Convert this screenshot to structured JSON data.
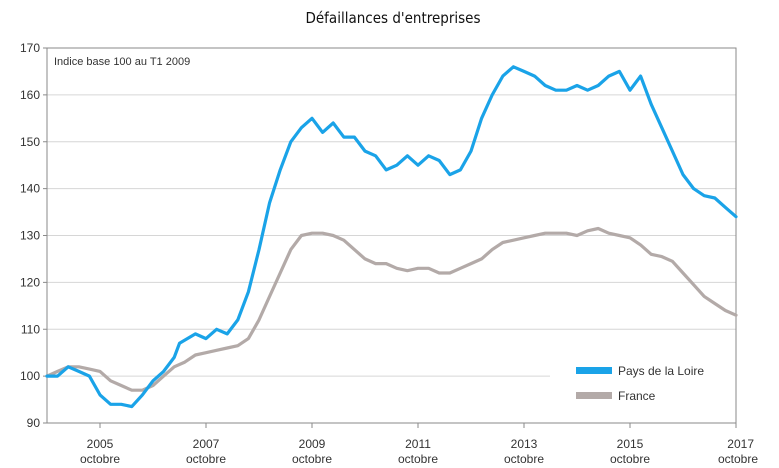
{
  "chart_data": {
    "type": "line",
    "title": "Défaillances d'entreprises",
    "annotation": "Indice base 100 au T1 2009",
    "xlabel": "",
    "ylabel": "",
    "ylim": [
      90,
      170
    ],
    "yticks": [
      90,
      100,
      110,
      120,
      130,
      140,
      150,
      160,
      170
    ],
    "xlim": [
      2004.8,
      2017.8
    ],
    "xticks": [
      {
        "value": 2005.8,
        "label1": "2005",
        "label2": "octobre"
      },
      {
        "value": 2007.8,
        "label1": "2007",
        "label2": "octobre"
      },
      {
        "value": 2009.8,
        "label1": "2009",
        "label2": "octobre"
      },
      {
        "value": 2011.8,
        "label1": "2011",
        "label2": "octobre"
      },
      {
        "value": 2013.8,
        "label1": "2013",
        "label2": "octobre"
      },
      {
        "value": 2015.8,
        "label1": "2015",
        "label2": "octobre"
      },
      {
        "value": 2017.8,
        "label1": "2017",
        "label2": "octobre"
      }
    ],
    "grid": "horizontal",
    "legend_position": "bottom-right",
    "series": [
      {
        "name": "Pays de la Loire",
        "color": "#1aa3e8",
        "points": [
          [
            2004.8,
            100
          ],
          [
            2005.0,
            100
          ],
          [
            2005.2,
            102
          ],
          [
            2005.4,
            101
          ],
          [
            2005.6,
            100
          ],
          [
            2005.8,
            96
          ],
          [
            2006.0,
            94
          ],
          [
            2006.2,
            94
          ],
          [
            2006.4,
            93.5
          ],
          [
            2006.6,
            96
          ],
          [
            2006.8,
            99
          ],
          [
            2007.0,
            101
          ],
          [
            2007.2,
            104
          ],
          [
            2007.3,
            107
          ],
          [
            2007.6,
            109
          ],
          [
            2007.8,
            108
          ],
          [
            2008.0,
            110
          ],
          [
            2008.2,
            109
          ],
          [
            2008.4,
            112
          ],
          [
            2008.6,
            118
          ],
          [
            2008.8,
            127
          ],
          [
            2009.0,
            137
          ],
          [
            2009.2,
            144
          ],
          [
            2009.4,
            150
          ],
          [
            2009.6,
            153
          ],
          [
            2009.8,
            155
          ],
          [
            2010.0,
            152
          ],
          [
            2010.2,
            154
          ],
          [
            2010.4,
            151
          ],
          [
            2010.6,
            151
          ],
          [
            2010.8,
            148
          ],
          [
            2011.0,
            147
          ],
          [
            2011.2,
            144
          ],
          [
            2011.4,
            145
          ],
          [
            2011.6,
            147
          ],
          [
            2011.8,
            145
          ],
          [
            2012.0,
            147
          ],
          [
            2012.2,
            146
          ],
          [
            2012.4,
            143
          ],
          [
            2012.6,
            144
          ],
          [
            2012.8,
            148
          ],
          [
            2013.0,
            155
          ],
          [
            2013.2,
            160
          ],
          [
            2013.4,
            164
          ],
          [
            2013.6,
            166
          ],
          [
            2013.8,
            165
          ],
          [
            2014.0,
            164
          ],
          [
            2014.2,
            162
          ],
          [
            2014.4,
            161
          ],
          [
            2014.6,
            161
          ],
          [
            2014.8,
            162
          ],
          [
            2015.0,
            161
          ],
          [
            2015.2,
            162
          ],
          [
            2015.4,
            164
          ],
          [
            2015.6,
            165
          ],
          [
            2015.8,
            161
          ],
          [
            2016.0,
            164
          ],
          [
            2016.2,
            158
          ],
          [
            2016.4,
            153
          ],
          [
            2016.6,
            148
          ],
          [
            2016.8,
            143
          ],
          [
            2017.0,
            140
          ],
          [
            2017.2,
            138.5
          ],
          [
            2017.4,
            138
          ],
          [
            2017.6,
            136
          ],
          [
            2017.8,
            134
          ]
        ]
      },
      {
        "name": "France",
        "color": "#b3aaa8",
        "points": [
          [
            2004.8,
            100
          ],
          [
            2005.0,
            101
          ],
          [
            2005.2,
            102
          ],
          [
            2005.4,
            102
          ],
          [
            2005.6,
            101.5
          ],
          [
            2005.8,
            101
          ],
          [
            2006.0,
            99
          ],
          [
            2006.2,
            98
          ],
          [
            2006.4,
            97
          ],
          [
            2006.6,
            97
          ],
          [
            2006.8,
            98
          ],
          [
            2007.0,
            100
          ],
          [
            2007.2,
            102
          ],
          [
            2007.4,
            103
          ],
          [
            2007.6,
            104.5
          ],
          [
            2007.8,
            105
          ],
          [
            2008.0,
            105.5
          ],
          [
            2008.2,
            106
          ],
          [
            2008.4,
            106.5
          ],
          [
            2008.6,
            108
          ],
          [
            2008.8,
            112
          ],
          [
            2009.0,
            117
          ],
          [
            2009.2,
            122
          ],
          [
            2009.4,
            127
          ],
          [
            2009.6,
            130
          ],
          [
            2009.8,
            130.5
          ],
          [
            2010.0,
            130.5
          ],
          [
            2010.2,
            130
          ],
          [
            2010.4,
            129
          ],
          [
            2010.6,
            127
          ],
          [
            2010.8,
            125
          ],
          [
            2011.0,
            124
          ],
          [
            2011.2,
            124
          ],
          [
            2011.4,
            123
          ],
          [
            2011.6,
            122.5
          ],
          [
            2011.8,
            123
          ],
          [
            2012.0,
            123
          ],
          [
            2012.2,
            122
          ],
          [
            2012.4,
            122
          ],
          [
            2012.6,
            123
          ],
          [
            2012.8,
            124
          ],
          [
            2013.0,
            125
          ],
          [
            2013.2,
            127
          ],
          [
            2013.4,
            128.5
          ],
          [
            2013.6,
            129
          ],
          [
            2013.8,
            129.5
          ],
          [
            2014.0,
            130
          ],
          [
            2014.2,
            130.5
          ],
          [
            2014.4,
            130.5
          ],
          [
            2014.6,
            130.5
          ],
          [
            2014.8,
            130
          ],
          [
            2015.0,
            131
          ],
          [
            2015.2,
            131.5
          ],
          [
            2015.4,
            130.5
          ],
          [
            2015.6,
            130
          ],
          [
            2015.8,
            129.5
          ],
          [
            2016.0,
            128
          ],
          [
            2016.2,
            126
          ],
          [
            2016.4,
            125.5
          ],
          [
            2016.6,
            124.5
          ],
          [
            2016.8,
            122
          ],
          [
            2017.0,
            119.5
          ],
          [
            2017.2,
            117
          ],
          [
            2017.4,
            115.5
          ],
          [
            2017.6,
            114
          ],
          [
            2017.8,
            113
          ]
        ]
      }
    ]
  }
}
